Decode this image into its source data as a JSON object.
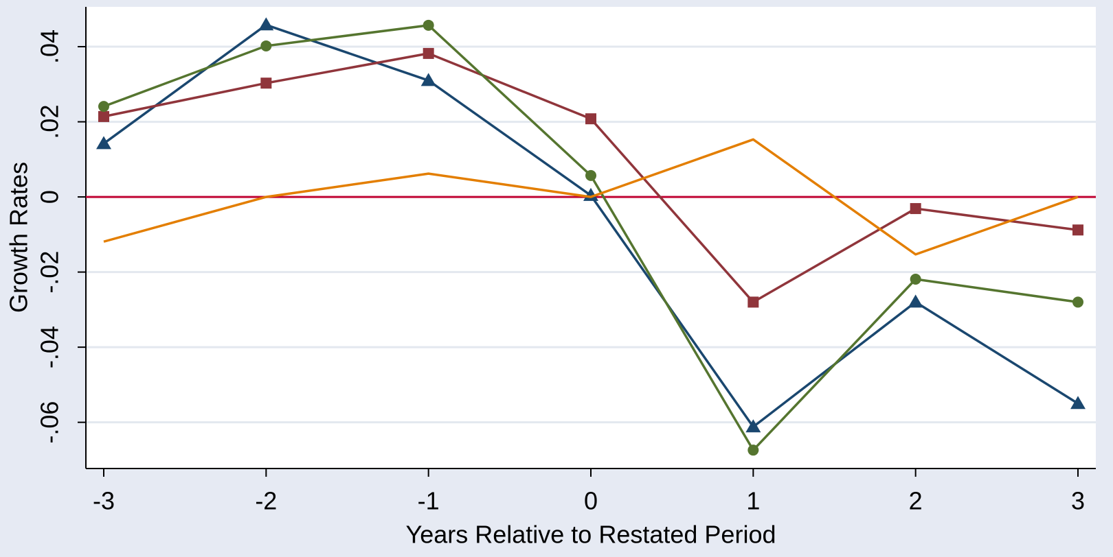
{
  "chart_data": {
    "type": "line",
    "x": [
      -3,
      -2,
      -1,
      0,
      1,
      2,
      3
    ],
    "xlim": [
      -3.11,
      3.11
    ],
    "ylim": [
      -0.0723,
      0.0506
    ],
    "xticks": [
      -3,
      -2,
      -1,
      0,
      1,
      2,
      3
    ],
    "yticks": [
      {
        "value": -0.06,
        "label": "-.06"
      },
      {
        "value": -0.04,
        "label": "-.04"
      },
      {
        "value": -0.02,
        "label": "-.02"
      },
      0,
      {
        "value": 0.02,
        "label": ".02"
      },
      {
        "value": 0.04,
        "label": ".04"
      }
    ],
    "xlabel": "Years Relative to Restated Period",
    "ylabel": "Growth Rates",
    "grid": true,
    "refline": {
      "value": 0,
      "color": "#c10534"
    },
    "series": [
      {
        "color": "#1a476f",
        "marker": "triangle",
        "values": [
          0.0142,
          0.0458,
          0.031,
          0.0004,
          -0.0612,
          -0.028,
          -0.055
        ]
      },
      {
        "color": "#90353b",
        "marker": "square",
        "values": [
          0.0214,
          0.0303,
          0.0382,
          0.0208,
          -0.028,
          -0.0031,
          -0.0088
        ]
      },
      {
        "color": "#55752f",
        "marker": "circle",
        "values": [
          0.0241,
          0.0402,
          0.0457,
          0.0057,
          -0.0674,
          -0.0219,
          -0.028
        ]
      },
      {
        "color": "#e37e00",
        "marker": "none",
        "values": [
          -0.0119,
          0,
          0.0062,
          0,
          0.0153,
          -0.0153,
          0
        ]
      }
    ]
  }
}
